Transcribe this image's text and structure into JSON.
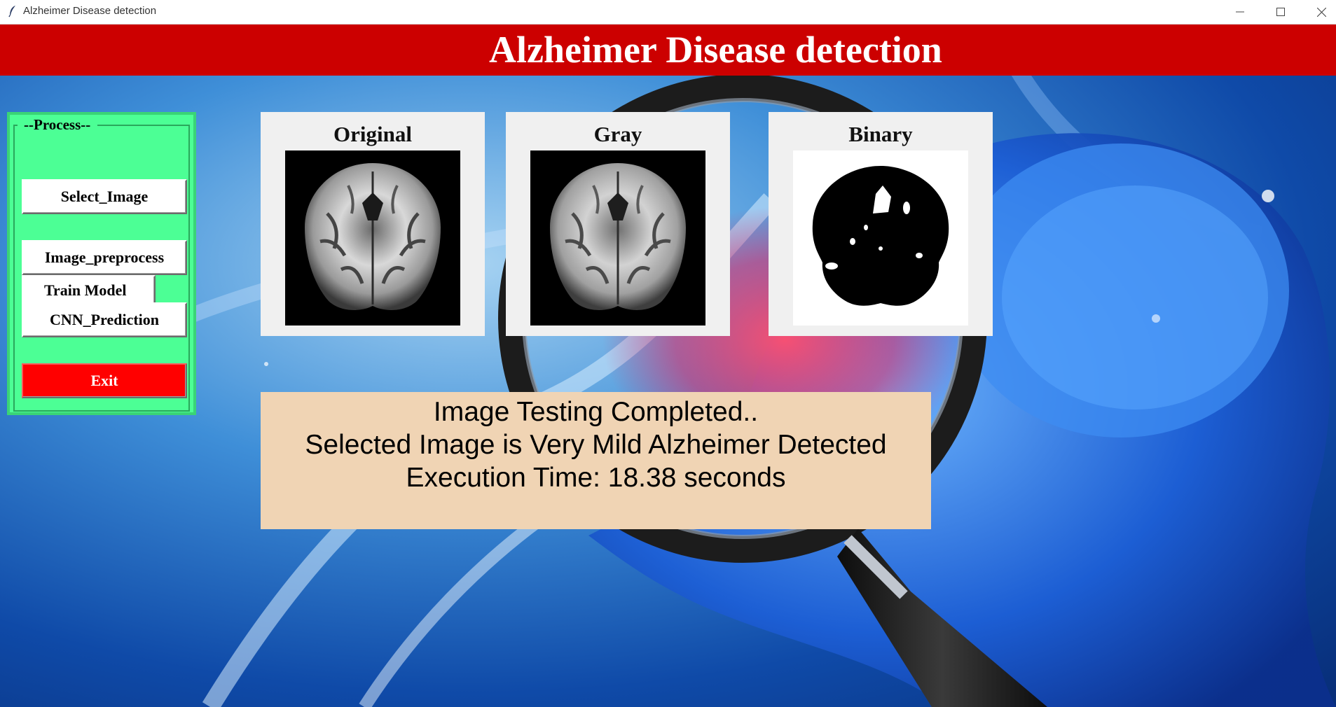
{
  "window": {
    "title": "Alzheimer Disease detection",
    "controls": {
      "minimize_icon": "minimize-icon",
      "maximize_icon": "maximize-icon",
      "close_icon": "close-icon"
    }
  },
  "header": {
    "title": "Alzheimer Disease detection",
    "background": "#cc0000"
  },
  "process_panel": {
    "legend": "--Process--",
    "background": "#4cff95",
    "buttons": {
      "select_image": "Select_Image",
      "image_preprocess": "Image_preprocess",
      "train_model": "Train Model",
      "cnn_prediction": "CNN_Prediction",
      "exit": "Exit"
    },
    "exit_color": "#ff0000"
  },
  "images": {
    "original": "Original",
    "gray": "Gray",
    "binary": "Binary"
  },
  "result": {
    "line1": "Image Testing Completed..",
    "line2": "Selected Image is Very Mild Alzheimer Detected",
    "line3": "Execution Time: 18.38 seconds",
    "background": "#f0d4b4"
  }
}
